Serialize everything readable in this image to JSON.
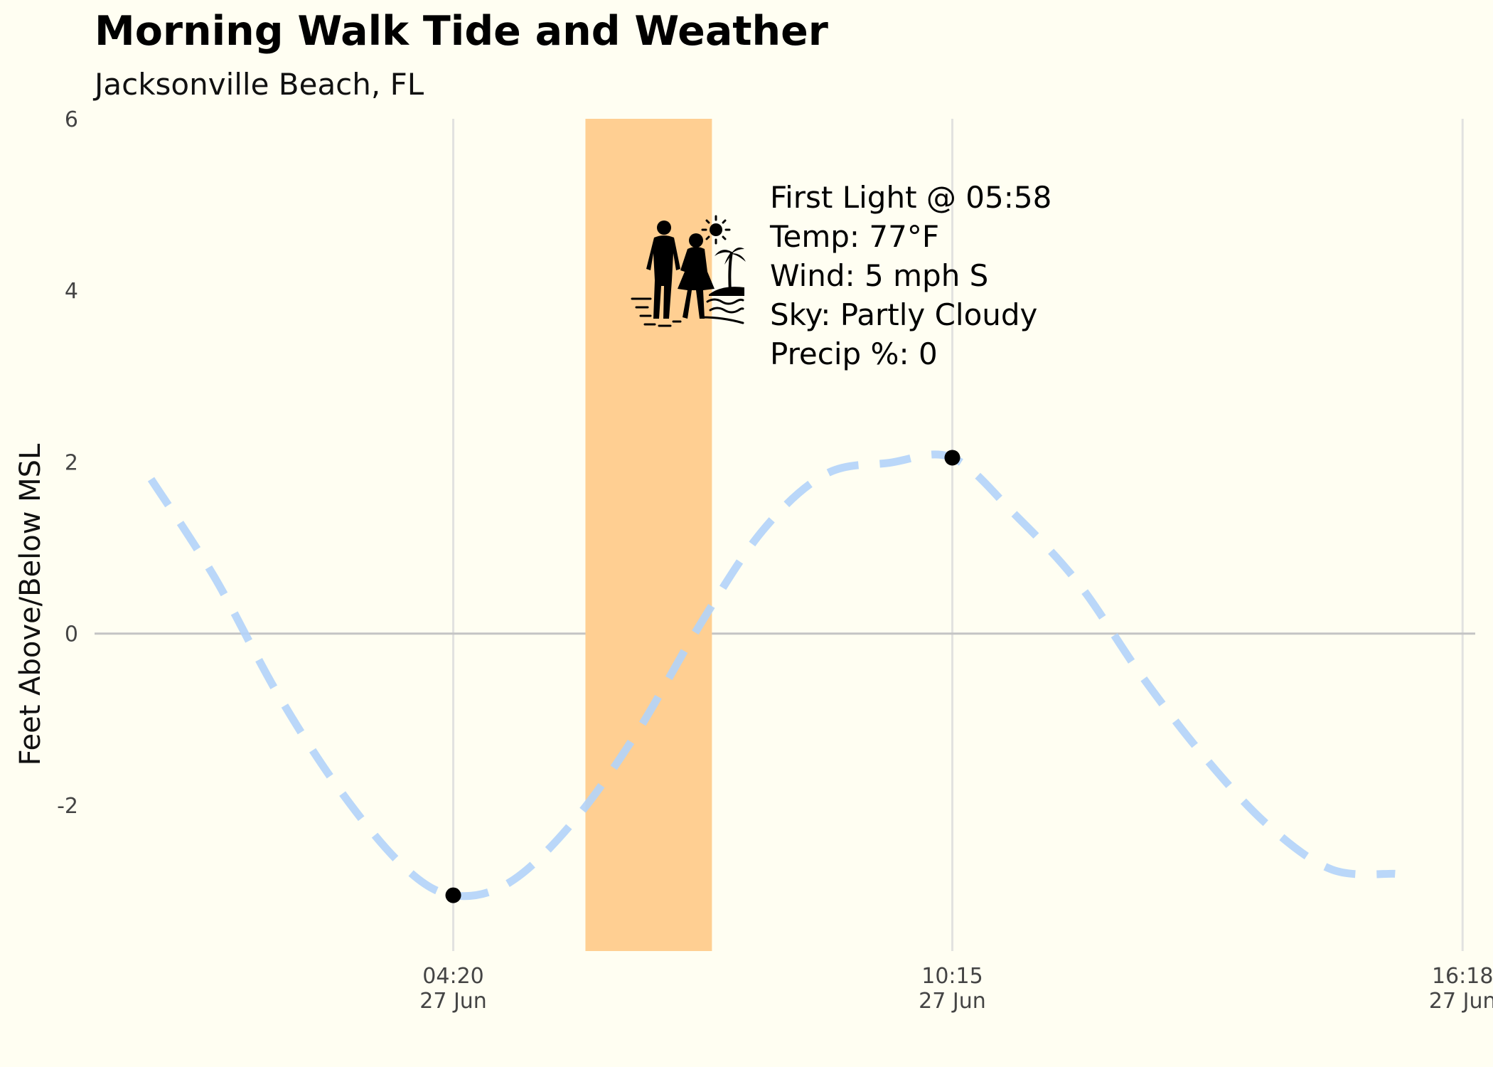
{
  "chart_data": {
    "type": "line",
    "title": "Morning Walk Tide and Weather",
    "subtitle": "Jacksonville Beach, FL",
    "ylabel": "Feet Above/Below MSL",
    "xlabel": "",
    "ylim": [
      -3.7,
      6
    ],
    "yticks": [
      6,
      4,
      2,
      0,
      -2
    ],
    "yticklabels": [
      "6",
      "4",
      "2",
      "0",
      "-2"
    ],
    "xlim_hours": [
      0.08,
      16.45
    ],
    "xticks": [
      {
        "time": "04:20",
        "date": "27 Jun",
        "hour": 4.333
      },
      {
        "time": "10:15",
        "date": "27 Jun",
        "hour": 10.25
      },
      {
        "time": "16:18",
        "date": "27 Jun",
        "hour": 16.3
      }
    ],
    "tide_curve": {
      "x_hours": [
        0.75,
        1.5,
        2.25,
        3.0,
        3.75,
        4.333,
        5.0,
        5.75,
        6.5,
        7.25,
        8.0,
        8.75,
        9.5,
        10.25,
        11.0,
        11.75,
        12.5,
        13.25,
        14.0,
        14.75,
        15.5
      ],
      "y_feet": [
        1.8,
        0.66,
        -0.7,
        -1.84,
        -2.72,
        -3.05,
        -2.9,
        -2.2,
        -1.17,
        0.09,
        1.2,
        1.86,
        1.99,
        2.05,
        1.38,
        0.58,
        -0.5,
        -1.45,
        -2.24,
        -2.75,
        -2.8
      ],
      "color": "#B3D3FA",
      "style": "dashed"
    },
    "extremes": [
      {
        "hour": 4.333,
        "feet": -3.05,
        "type": "low"
      },
      {
        "hour": 10.25,
        "feet": 2.05,
        "type": "high"
      }
    ],
    "walk_window_hours": [
      5.9,
      7.4
    ],
    "walk_window_color": "#FFCF92",
    "annotation": [
      "First Light @ 05:58",
      "Temp: 77°F",
      "Wind: 5 mph S",
      "Sky: Partly Cloudy",
      "Precip %: 0"
    ],
    "annotation_icon": "couple-walking-beach-icon",
    "grid": true,
    "legend": "none"
  }
}
